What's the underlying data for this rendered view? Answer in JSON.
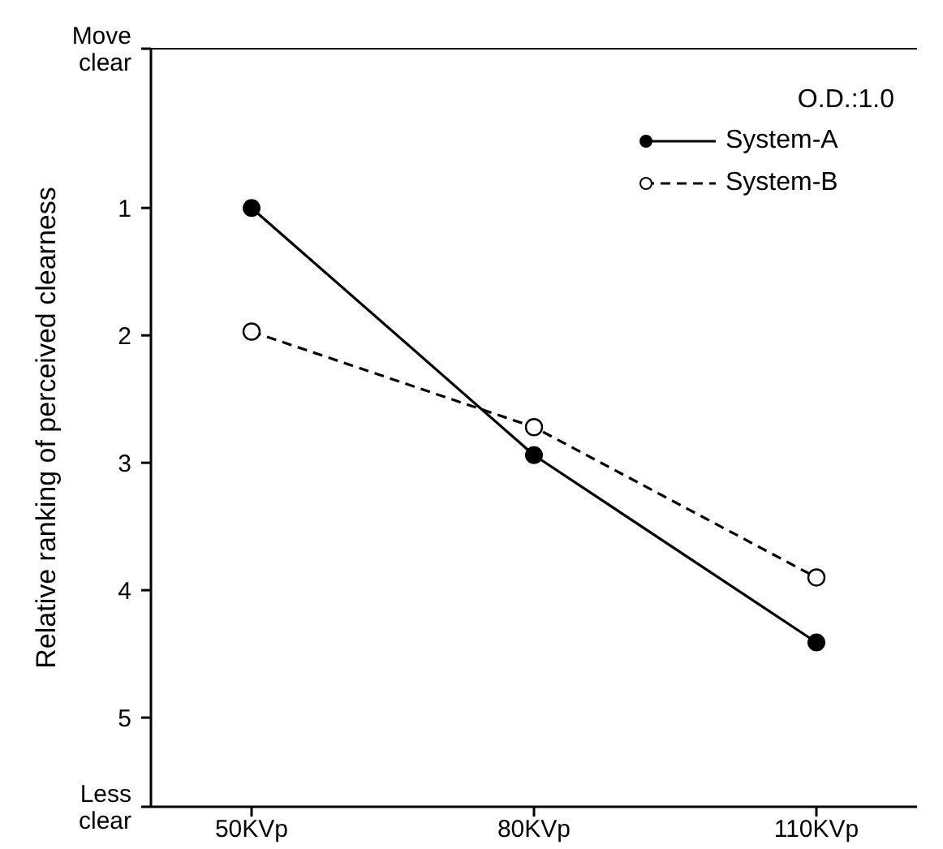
{
  "chart_data": {
    "type": "line",
    "ylabel": "Relative ranking of perceived clearness",
    "categories": [
      "50KVp",
      "80KVp",
      "110KVp"
    ],
    "series": [
      {
        "name": "System-A",
        "color": "#000000",
        "values": [
          1.0,
          2.94,
          4.41
        ],
        "marker": "circle",
        "line_style": "solid"
      },
      {
        "name": "System-B",
        "color": "#000000",
        "values": [
          1.97,
          2.72,
          3.9
        ],
        "marker": "open-circle",
        "line_style": "dashed"
      }
    ],
    "ylim": [
      5.7,
      -0.25
    ],
    "yticks": [
      {
        "value": -0.25,
        "label": "Move clear"
      },
      1,
      2,
      3,
      4,
      5,
      {
        "value": 5.7,
        "label": "Less clear"
      }
    ],
    "annotations": [
      "O.D.:1.0"
    ],
    "legend": "top right",
    "grid": false
  }
}
